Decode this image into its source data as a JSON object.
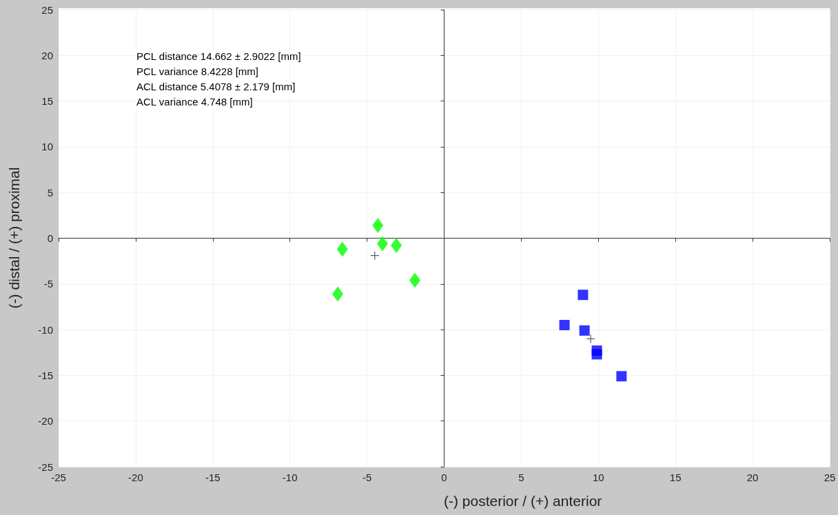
{
  "chart_data": {
    "type": "scatter",
    "xlabel": "(-) posterior / (+) anterior",
    "ylabel": "(-) distal / (+) proximal",
    "annotations": [
      "PCL distance 14.662 ± 2.9022 [mm]",
      "PCL variance 8.4228 [mm]",
      "ACL distance 5.4078 ± 2.179 [mm]",
      "ACL variance 4.748 [mm]"
    ],
    "series": [
      {
        "color": "#00ff00",
        "marker": "diamond",
        "x": [
          -4.3,
          -6.6,
          -4.0,
          -3.1,
          -1.9,
          -6.9
        ],
        "values": [
          1.4,
          -1.2,
          -0.6,
          -0.8,
          -4.6,
          -6.1
        ]
      },
      {
        "color": "#0000ff",
        "marker": "square",
        "x": [
          9.0,
          7.8,
          9.1,
          9.9,
          9.9,
          11.5
        ],
        "values": [
          -6.2,
          -9.5,
          -10.1,
          -12.3,
          -12.7,
          -15.1
        ]
      },
      {
        "color": "#333333",
        "marker": "cross",
        "x": [
          -4.5,
          9.5
        ],
        "values": [
          -1.9,
          -11.0
        ]
      }
    ],
    "xlim": [
      -25,
      25
    ],
    "xticks": [
      -25,
      -20,
      -15,
      -10,
      -5,
      0,
      5,
      10,
      15,
      20,
      25
    ],
    "ylim": [
      -25,
      25
    ],
    "yticks": [
      -25,
      -20,
      -15,
      -10,
      -5,
      0,
      5,
      10,
      15,
      20,
      25
    ],
    "grid": true
  }
}
